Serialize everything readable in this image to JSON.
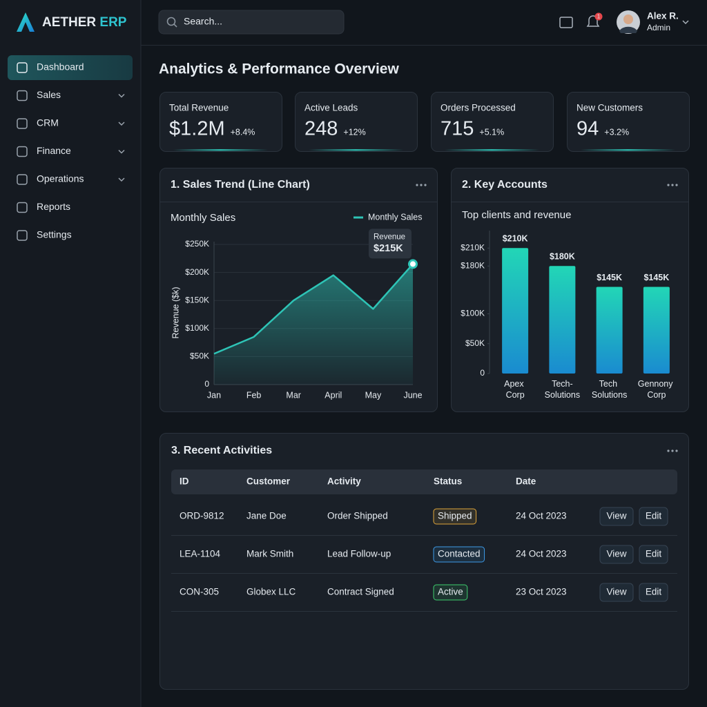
{
  "sidebar": {
    "brand": {
      "name": "AETHER",
      "suffix": "ERP"
    },
    "nav": [
      {
        "label": "Dashboard",
        "active": true,
        "submenu": false
      },
      {
        "label": "Sales",
        "active": false,
        "submenu": true
      },
      {
        "label": "CRM",
        "active": false,
        "submenu": true
      },
      {
        "label": "Finance",
        "active": false,
        "submenu": true
      },
      {
        "label": "Operations",
        "active": false,
        "submenu": true
      },
      {
        "label": "Reports",
        "active": false,
        "submenu": false
      },
      {
        "label": "Settings",
        "active": false,
        "submenu": false
      }
    ]
  },
  "header": {
    "search_placeholder": "Search...",
    "notifications": "1",
    "user": {
      "name": "Alex R.",
      "role": "Admin"
    }
  },
  "page_title": "Analytics & Performance Overview",
  "kpis": [
    {
      "label": "Total Revenue",
      "value": "$1.2M",
      "change": "+8.4%"
    },
    {
      "label": "Active Leads",
      "value": "248",
      "change": "+12%"
    },
    {
      "label": "Orders Processed",
      "value": "715",
      "change": "+5.1%"
    },
    {
      "label": "New Customers",
      "value": "94",
      "change": "+3.2%"
    }
  ],
  "chart_data": [
    {
      "type": "line",
      "title": "1. Sales Trend (Line Chart)",
      "subtitle": "Monthly Sales",
      "ylabel": "Revenue ($k)",
      "categories": [
        "Jan",
        "Feb",
        "Mar",
        "April",
        "May",
        "June"
      ],
      "series": [
        {
          "name": "Monthly Sales",
          "color": "#2ec4b6",
          "values": [
            55,
            85,
            150,
            195,
            135,
            215
          ],
          "value_labels": [
            null,
            null,
            null,
            null,
            null,
            "$215K"
          ]
        }
      ],
      "tooltip_title": "Revenue",
      "ylim": [
        0,
        250
      ],
      "yticks": [
        0,
        {
          "value": 50,
          "label": "$50K"
        },
        {
          "value": 100,
          "label": "$100K"
        },
        {
          "value": 150,
          "label": "$150K"
        },
        {
          "value": 200,
          "label": "$200K"
        },
        {
          "value": 250,
          "label": "$250K"
        }
      ],
      "grid": true,
      "legend": "top-right"
    },
    {
      "type": "bar",
      "title": "2. Key Accounts",
      "subtitle": "Top clients and revenue",
      "categories": [
        "Apex Corp",
        "Tech-Solutions",
        "Tech Solutions",
        "Gennony Corp"
      ],
      "values": [
        210,
        180,
        145,
        145
      ],
      "value_labels": [
        "$210K",
        "$180K",
        "$145K",
        "$145K"
      ],
      "gradient": [
        "#22d6b6",
        "#1a8bd0"
      ],
      "ylim": [
        0,
        230
      ],
      "yticks": [
        0,
        {
          "value": 50,
          "label": "$50K"
        },
        {
          "value": 100,
          "label": "$100K"
        },
        {
          "value": 180,
          "label": "$180K"
        },
        {
          "value": 210,
          "label": "$210K"
        }
      ],
      "grid": false
    }
  ],
  "table": {
    "title": "3. Recent Activities",
    "columns": [
      "ID",
      "Customer",
      "Activity",
      "Status",
      "Date"
    ],
    "actions": [
      "View",
      "Edit"
    ],
    "rows": [
      {
        "id": "ORD-9812",
        "customer": "Jane Doe",
        "activity": "Order Shipped",
        "status": "Shipped",
        "status_color": "#e0a63a",
        "date": "24 Oct 2023"
      },
      {
        "id": "LEA-1104",
        "customer": "Mark Smith",
        "activity": "Lead Follow-up",
        "status": "Contacted",
        "status_color": "#3d9be9",
        "date": "24 Oct 2023"
      },
      {
        "id": "CON-305",
        "customer": "Globex LLC",
        "activity": "Contract Signed",
        "status": "Active",
        "status_color": "#3ecf6e",
        "date": "23 Oct 2023"
      }
    ]
  }
}
